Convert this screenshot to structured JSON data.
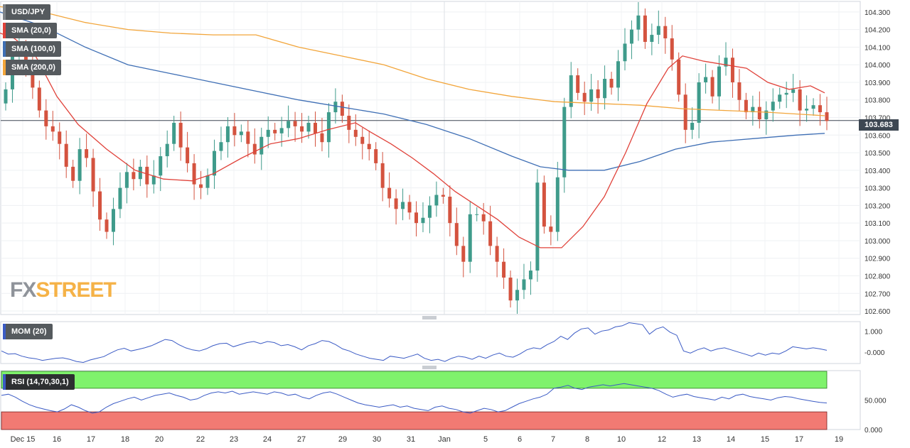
{
  "symbol": "USD/JPY",
  "indicators": {
    "sma20": "SMA (20,0)",
    "sma100": "SMA (100,0)",
    "sma200": "SMA (200,0)",
    "mom": "MOM (20)",
    "rsi": "RSI (14,70,30,1)"
  },
  "logo": {
    "fx": "FX",
    "street": "STREET"
  },
  "colors": {
    "up": "#3f9b8b",
    "down": "#d4533f",
    "sma20": "#e0423a",
    "sma100": "#3f6fb5",
    "sma200": "#f2a53a",
    "indicator": "#3b5bc5",
    "rsi_over": "#7ff26c",
    "rsi_under": "#f27a73"
  },
  "chart_data": {
    "type": "candlestick",
    "last_price": "103.683",
    "y_ticks": [
      "104.300",
      "104.200",
      "104.100",
      "104.000",
      "103.900",
      "103.800",
      "103.700",
      "103.600",
      "103.500",
      "103.400",
      "103.300",
      "103.200",
      "103.100",
      "103.000",
      "102.900",
      "102.800",
      "102.700",
      "102.600"
    ],
    "ylim": [
      102.58,
      104.36
    ],
    "x_ticks": [
      "Dec 15",
      "16",
      "17",
      "18",
      "20",
      "22",
      "23",
      "24",
      "27",
      "29",
      "30",
      "31",
      "Jan",
      "5",
      "6",
      "7",
      "8",
      "10",
      "12",
      "13",
      "14",
      "15",
      "17",
      "19"
    ],
    "candles_close": [
      103.86,
      104.05,
      104.09,
      104.02,
      103.87,
      103.74,
      103.65,
      103.62,
      103.55,
      103.42,
      103.34,
      103.52,
      103.47,
      103.28,
      103.12,
      103.05,
      103.18,
      103.3,
      103.39,
      103.35,
      103.42,
      103.32,
      103.37,
      103.48,
      103.55,
      103.67,
      103.53,
      103.44,
      103.32,
      103.3,
      103.37,
      103.51,
      103.56,
      103.65,
      103.6,
      103.62,
      103.55,
      103.49,
      103.59,
      103.63,
      103.61,
      103.64,
      103.68,
      103.65,
      103.62,
      103.67,
      103.61,
      103.56,
      103.73,
      103.79,
      103.71,
      103.63,
      103.59,
      103.55,
      103.52,
      103.44,
      103.3,
      103.24,
      103.18,
      103.22,
      103.16,
      103.1,
      103.13,
      103.2,
      103.26,
      103.25,
      103.1,
      102.97,
      102.88,
      103.15,
      103.15,
      103.11,
      102.97,
      102.88,
      102.79,
      102.66,
      102.72,
      102.78,
      102.83,
      103.33,
      103.08,
      103.05,
      103.36,
      103.76,
      103.94,
      103.84,
      103.79,
      103.86,
      103.81,
      103.92,
      103.87,
      104.02,
      104.12,
      104.2,
      104.28,
      104.13,
      104.17,
      104.22,
      104.15,
      104.03,
      103.83,
      103.63,
      103.67,
      103.9,
      103.93,
      103.82,
      103.99,
      104.04,
      103.9,
      103.8,
      103.73,
      103.76,
      103.69,
      103.74,
      103.79,
      103.83,
      103.84,
      103.86,
      103.74,
      103.75,
      103.77,
      103.73,
      103.68
    ],
    "sma20_points": [
      [
        0,
        104.18
      ],
      [
        20,
        104.15
      ],
      [
        50,
        104.05
      ],
      [
        80,
        103.82
      ],
      [
        110,
        103.66
      ],
      [
        150,
        103.52
      ],
      [
        190,
        103.4
      ],
      [
        230,
        103.35
      ],
      [
        270,
        103.34
      ],
      [
        300,
        103.38
      ],
      [
        340,
        103.47
      ],
      [
        380,
        103.55
      ],
      [
        420,
        103.58
      ],
      [
        460,
        103.63
      ],
      [
        500,
        103.67
      ],
      [
        520,
        103.62
      ],
      [
        550,
        103.55
      ],
      [
        580,
        103.47
      ],
      [
        610,
        103.38
      ],
      [
        640,
        103.28
      ],
      [
        670,
        103.2
      ],
      [
        700,
        103.12
      ],
      [
        730,
        103.02
      ],
      [
        760,
        102.96
      ],
      [
        790,
        102.96
      ],
      [
        820,
        103.08
      ],
      [
        850,
        103.25
      ],
      [
        880,
        103.5
      ],
      [
        910,
        103.78
      ],
      [
        940,
        103.98
      ],
      [
        960,
        104.05
      ],
      [
        990,
        104.02
      ],
      [
        1020,
        104.0
      ],
      [
        1050,
        103.98
      ],
      [
        1080,
        103.9
      ],
      [
        1110,
        103.86
      ],
      [
        1140,
        103.88
      ],
      [
        1160,
        103.84
      ]
    ],
    "sma100_points": [
      [
        0,
        104.3
      ],
      [
        60,
        104.22
      ],
      [
        120,
        104.1
      ],
      [
        180,
        104.0
      ],
      [
        240,
        103.95
      ],
      [
        300,
        103.9
      ],
      [
        360,
        103.85
      ],
      [
        420,
        103.8
      ],
      [
        480,
        103.76
      ],
      [
        540,
        103.72
      ],
      [
        600,
        103.66
      ],
      [
        660,
        103.58
      ],
      [
        720,
        103.48
      ],
      [
        760,
        103.42
      ],
      [
        800,
        103.4
      ],
      [
        850,
        103.4
      ],
      [
        900,
        103.45
      ],
      [
        950,
        103.52
      ],
      [
        1000,
        103.56
      ],
      [
        1060,
        103.58
      ],
      [
        1120,
        103.6
      ],
      [
        1160,
        103.61
      ]
    ],
    "sma200_points": [
      [
        0,
        104.33
      ],
      [
        60,
        104.3
      ],
      [
        120,
        104.24
      ],
      [
        180,
        104.2
      ],
      [
        240,
        104.18
      ],
      [
        300,
        104.17
      ],
      [
        360,
        104.17
      ],
      [
        420,
        104.1
      ],
      [
        480,
        104.05
      ],
      [
        540,
        104.0
      ],
      [
        600,
        103.92
      ],
      [
        660,
        103.86
      ],
      [
        720,
        103.82
      ],
      [
        780,
        103.79
      ],
      [
        840,
        103.78
      ],
      [
        900,
        103.77
      ],
      [
        960,
        103.75
      ],
      [
        1020,
        103.74
      ],
      [
        1080,
        103.73
      ],
      [
        1160,
        103.71
      ]
    ],
    "mom_ticks": [
      "1.000",
      "-0.000"
    ],
    "mom_values": [
      0.05,
      -0.1,
      -0.08,
      -0.2,
      -0.28,
      -0.32,
      -0.4,
      -0.35,
      -0.3,
      -0.28,
      -0.35,
      -0.45,
      -0.5,
      -0.38,
      -0.3,
      -0.22,
      -0.05,
      0.1,
      0.18,
      0.05,
      0.12,
      0.2,
      0.3,
      0.45,
      0.6,
      0.55,
      0.35,
      0.2,
      0.1,
      0.05,
      0.15,
      0.3,
      0.4,
      0.42,
      0.25,
      0.35,
      0.45,
      0.5,
      0.4,
      0.5,
      0.45,
      0.3,
      0.35,
      0.25,
      0.1,
      0.3,
      0.4,
      0.55,
      0.5,
      0.35,
      0.15,
      0.05,
      -0.1,
      -0.2,
      -0.3,
      -0.35,
      -0.4,
      -0.2,
      -0.25,
      -0.3,
      -0.2,
      -0.1,
      -0.3,
      -0.4,
      -0.35,
      -0.45,
      -0.3,
      -0.2,
      -0.25,
      -0.35,
      -0.2,
      -0.3,
      -0.15,
      -0.05,
      -0.2,
      -0.25,
      -0.1,
      0.1,
      0.2,
      0.15,
      0.35,
      0.5,
      0.75,
      0.6,
      0.9,
      1.1,
      1.15,
      0.85,
      1.0,
      1.05,
      1.2,
      1.25,
      1.4,
      1.35,
      1.3,
      0.85,
      1.1,
      1.2,
      0.95,
      0.8,
      0.05,
      -0.05,
      0.1,
      0.2,
      0.05,
      0.15,
      0.2,
      0.1,
      0.0,
      -0.1,
      -0.2,
      -0.05,
      -0.15,
      -0.05,
      -0.1,
      0.05,
      0.25,
      0.2,
      0.15,
      0.2,
      0.15,
      0.08
    ],
    "mom_range": [
      -0.55,
      1.45
    ],
    "rsi_ticks": [
      "50.000",
      "0.000"
    ],
    "rsi_values": [
      58,
      60,
      55,
      48,
      42,
      38,
      35,
      32,
      30,
      35,
      42,
      38,
      32,
      28,
      30,
      38,
      44,
      48,
      52,
      55,
      50,
      54,
      58,
      60,
      62,
      58,
      55,
      50,
      52,
      58,
      62,
      64,
      62,
      65,
      60,
      62,
      64,
      62,
      60,
      64,
      62,
      58,
      60,
      55,
      52,
      58,
      62,
      64,
      60,
      55,
      50,
      45,
      42,
      40,
      38,
      40,
      42,
      38,
      40,
      36,
      34,
      32,
      38,
      40,
      36,
      34,
      30,
      28,
      32,
      36,
      34,
      30,
      32,
      38,
      44,
      48,
      52,
      55,
      60,
      70,
      72,
      75,
      70,
      68,
      72,
      74,
      76,
      74,
      76,
      78,
      76,
      74,
      72,
      70,
      66,
      60,
      55,
      58,
      60,
      56,
      54,
      52,
      50,
      55,
      52,
      58,
      60,
      56,
      54,
      52,
      50,
      54,
      56,
      55,
      52,
      50,
      48,
      46,
      45
    ]
  }
}
